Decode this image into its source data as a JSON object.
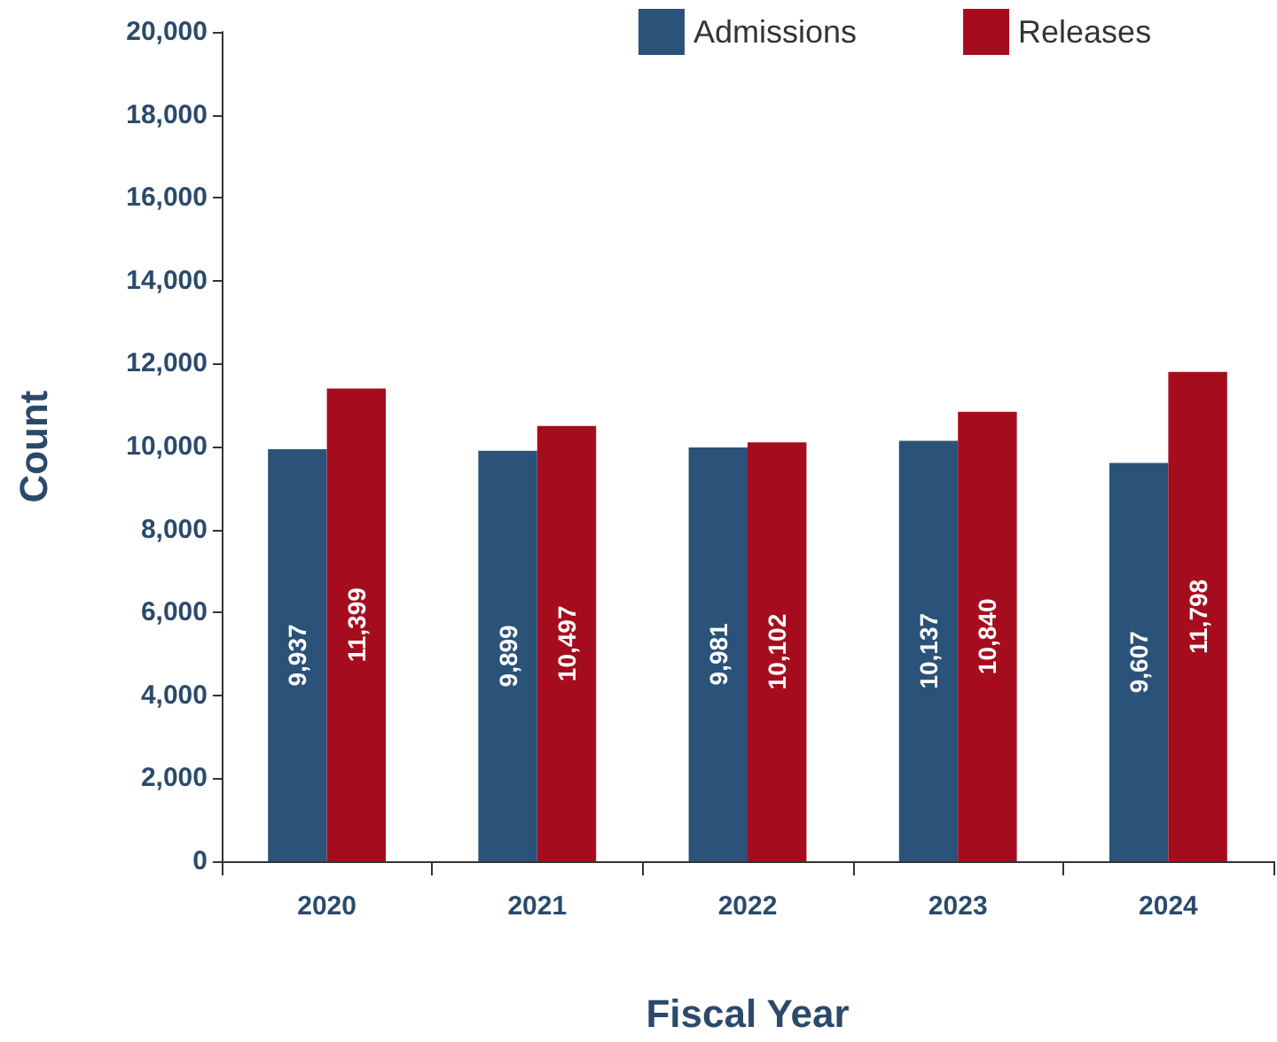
{
  "chart_data": {
    "type": "bar",
    "xlabel": "Fiscal Year",
    "ylabel": "Count",
    "categories": [
      "2020",
      "2021",
      "2022",
      "2023",
      "2024"
    ],
    "series": [
      {
        "name": "Admissions",
        "color": "#2b5278",
        "values": [
          9937,
          9899,
          9981,
          10137,
          9607
        ],
        "value_labels": [
          "9,937",
          "9,899",
          "9,981",
          "10,137",
          "9,607"
        ]
      },
      {
        "name": "Releases",
        "color": "#a50d1e",
        "values": [
          11399,
          10497,
          10102,
          10840,
          11798
        ],
        "value_labels": [
          "11,399",
          "10,497",
          "10,102",
          "10,840",
          "11,798"
        ]
      }
    ],
    "ylim": [
      0,
      20000
    ],
    "yticks": [
      0,
      {
        "value": 2000,
        "label": "2,000"
      },
      {
        "value": 4000,
        "label": "4,000"
      },
      {
        "value": 6000,
        "label": "6,000"
      },
      {
        "value": 8000,
        "label": "8,000"
      },
      {
        "value": 10000,
        "label": "10,000"
      },
      {
        "value": 12000,
        "label": "12,000"
      },
      {
        "value": 14000,
        "label": "14,000"
      },
      {
        "value": 16000,
        "label": "16,000"
      },
      {
        "value": 18000,
        "label": "18,000"
      },
      {
        "value": 20000,
        "label": "20,000"
      }
    ],
    "grid": false,
    "legend": "top"
  }
}
